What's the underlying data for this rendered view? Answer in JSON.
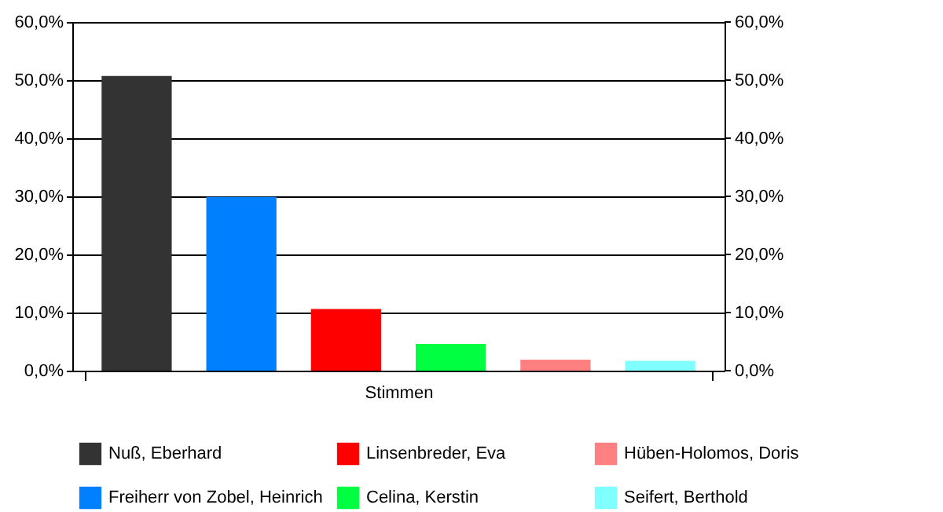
{
  "chart_data": {
    "type": "bar",
    "categories": [
      "Stimmen"
    ],
    "series": [
      {
        "name": "Nuß, Eberhard",
        "color": "#333333",
        "values": [
          50.7
        ]
      },
      {
        "name": "Freiherr von Zobel, Heinrich",
        "color": "#0080ff",
        "values": [
          29.9
        ]
      },
      {
        "name": "Linsenbreder, Eva",
        "color": "#ff0000",
        "values": [
          10.6
        ]
      },
      {
        "name": "Celina, Kerstin",
        "color": "#00ff40",
        "values": [
          4.6
        ]
      },
      {
        "name": "Hüben-Holomos, Doris",
        "color": "#ff8080",
        "values": [
          1.9
        ]
      },
      {
        "name": "Seifert, Berthold",
        "color": "#80ffff",
        "values": [
          1.7
        ]
      }
    ],
    "ylim": [
      0,
      60
    ],
    "yticks": [
      {
        "value": 0,
        "label": "0,0%"
      },
      {
        "value": 10,
        "label": "10,0%"
      },
      {
        "value": 20,
        "label": "20,0%"
      },
      {
        "value": 30,
        "label": "30,0%"
      },
      {
        "value": 40,
        "label": "40,0%"
      },
      {
        "value": 50,
        "label": "50,0%"
      },
      {
        "value": 60,
        "label": "60,0%"
      }
    ],
    "grid": "y",
    "legend": "bottom"
  }
}
